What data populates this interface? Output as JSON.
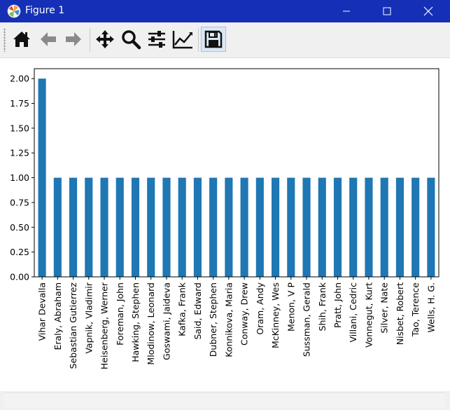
{
  "window": {
    "title": "Figure 1",
    "buttons": [
      "minimize",
      "maximize",
      "close"
    ]
  },
  "toolbar": {
    "items": [
      {
        "name": "home-icon",
        "tooltip": "Home"
      },
      {
        "name": "back-arrow-icon",
        "tooltip": "Back"
      },
      {
        "name": "forward-arrow-icon",
        "tooltip": "Forward"
      },
      {
        "name": "pan-icon",
        "tooltip": "Pan"
      },
      {
        "name": "zoom-icon",
        "tooltip": "Zoom"
      },
      {
        "name": "subplots-icon",
        "tooltip": "Configure subplots"
      },
      {
        "name": "axes-edit-icon",
        "tooltip": "Edit axis"
      },
      {
        "name": "save-icon",
        "tooltip": "Save"
      }
    ],
    "active": "save-icon"
  },
  "colors": {
    "titlebar": "#1530b7",
    "bar": "#1f77b4",
    "toolbar": "#f0f0f0"
  },
  "chart_data": {
    "type": "bar",
    "categories": [
      "Vihar Devalla",
      "Eraly, Abraham",
      "Sebastian Gutierrez",
      "Vapnik, Vladimir",
      "Heisenberg, Werner",
      "Foreman, John",
      "Hawking, Stephen",
      "Mlodinow, Leonard",
      "Goswami, Jaideva",
      "Kafka, Frank",
      "Said, Edward",
      "Dubner, Stephen",
      "Konnikova, Maria",
      "Conway, Drew",
      "Oram, Andy",
      "McKinney, Wes",
      "Menon, V P",
      "Sussman, Gerald",
      "Shih, Frank",
      "Pratt, John",
      "Villani, Cedric",
      "Vonnegut, Kurt",
      "Silver, Nate",
      "Nisbet, Robert",
      "Tao, Terence",
      "Wells, H. G."
    ],
    "values": [
      2,
      1,
      1,
      1,
      1,
      1,
      1,
      1,
      1,
      1,
      1,
      1,
      1,
      1,
      1,
      1,
      1,
      1,
      1,
      1,
      1,
      1,
      1,
      1,
      1,
      1
    ],
    "yticks": [
      "0.00",
      "0.25",
      "0.50",
      "0.75",
      "1.00",
      "1.25",
      "1.50",
      "1.75",
      "2.00"
    ],
    "ylim": [
      0,
      2.1
    ],
    "title": "",
    "xlabel": "",
    "ylabel": "",
    "grid": false,
    "legend": "none"
  }
}
